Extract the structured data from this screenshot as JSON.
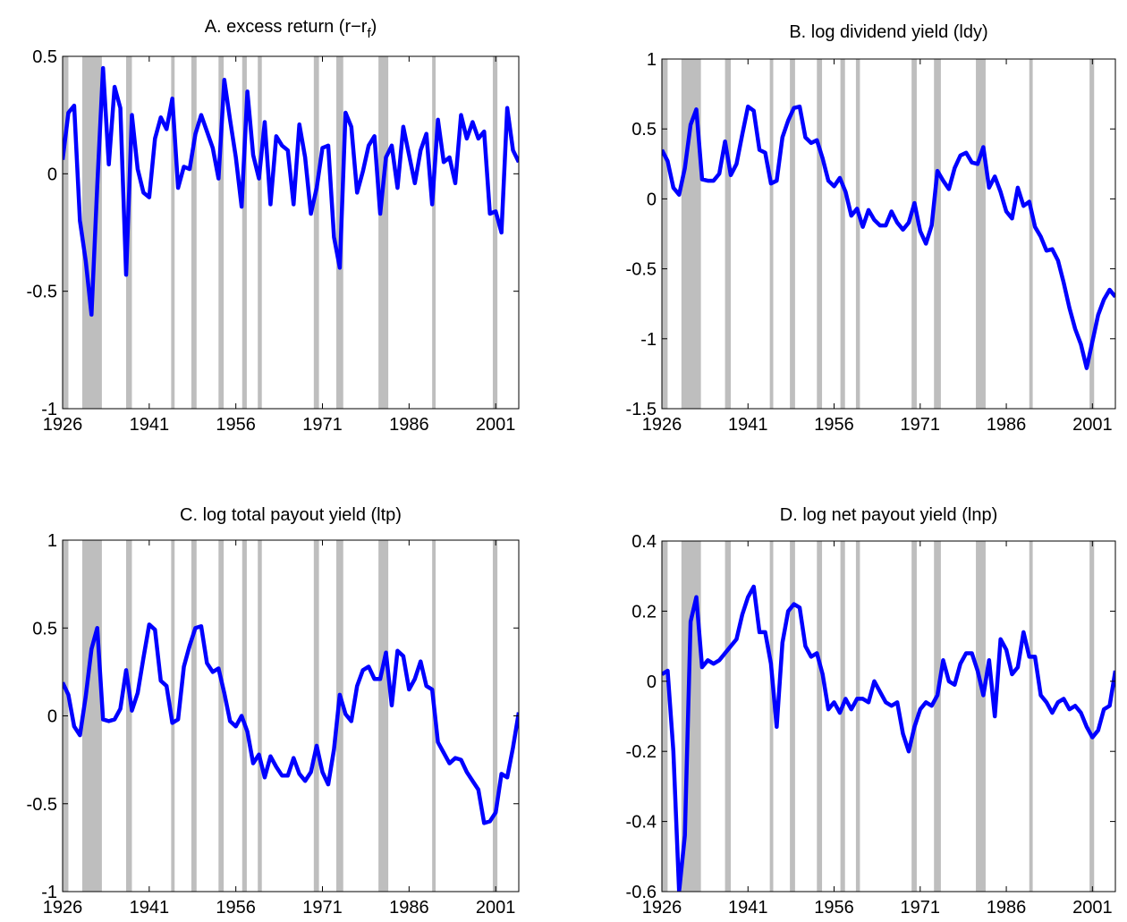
{
  "recessions": [
    [
      1926,
      1927
    ],
    [
      1929.4,
      1932.8
    ],
    [
      1937,
      1938
    ],
    [
      1944.8,
      1945.4
    ],
    [
      1948.3,
      1949.2
    ],
    [
      1953,
      1953.9
    ],
    [
      1957.1,
      1957.9
    ],
    [
      1959.8,
      1960.5
    ],
    [
      1969.5,
      1970.4
    ],
    [
      1973.4,
      1974.6
    ],
    [
      1980.7,
      1982.4
    ],
    [
      1990,
      1990.6
    ],
    [
      2000.5,
      2001.3
    ]
  ],
  "chart_data": [
    {
      "type": "line",
      "title": "A. excess return (r−r",
      "title_subscript": "f",
      "title_suffix": ")",
      "color": "#0000ff",
      "x": [
        1926,
        1927,
        1928,
        1929,
        1930,
        1931,
        1932,
        1933,
        1934,
        1935,
        1936,
        1937,
        1938,
        1939,
        1940,
        1941,
        1942,
        1943,
        1944,
        1945,
        1946,
        1947,
        1948,
        1949,
        1950,
        1951,
        1952,
        1953,
        1954,
        1955,
        1956,
        1957,
        1958,
        1959,
        1960,
        1961,
        1962,
        1963,
        1964,
        1965,
        1966,
        1967,
        1968,
        1969,
        1970,
        1971,
        1972,
        1973,
        1974,
        1975,
        1976,
        1977,
        1978,
        1979,
        1980,
        1981,
        1982,
        1983,
        1984,
        1985,
        1986,
        1987,
        1988,
        1989,
        1990,
        1991,
        1992,
        1993,
        1994,
        1995,
        1996,
        1997,
        1998,
        1999,
        2000,
        2001,
        2002,
        2003,
        2004,
        2005
      ],
      "values": [
        0.06,
        0.26,
        0.29,
        -0.2,
        -0.37,
        -0.6,
        -0.05,
        0.45,
        0.04,
        0.37,
        0.28,
        -0.43,
        0.25,
        0.02,
        -0.08,
        -0.1,
        0.15,
        0.24,
        0.19,
        0.32,
        -0.06,
        0.03,
        0.02,
        0.17,
        0.25,
        0.18,
        0.11,
        -0.02,
        0.4,
        0.23,
        0.07,
        -0.14,
        0.35,
        0.08,
        -0.02,
        0.22,
        -0.13,
        0.16,
        0.12,
        0.1,
        -0.13,
        0.21,
        0.07,
        -0.17,
        -0.06,
        0.11,
        0.12,
        -0.27,
        -0.4,
        0.26,
        0.2,
        -0.08,
        0.01,
        0.12,
        0.16,
        -0.17,
        0.07,
        0.12,
        -0.06,
        0.2,
        0.08,
        -0.04,
        0.1,
        0.17,
        -0.13,
        0.23,
        0.05,
        0.07,
        -0.04,
        0.25,
        0.15,
        0.22,
        0.15,
        0.18,
        -0.17,
        -0.16,
        -0.25,
        0.28,
        0.1,
        0.05
      ],
      "xlim": [
        1926,
        2005
      ],
      "xticks": [
        1926,
        1941,
        1956,
        1971,
        1986,
        2001
      ],
      "ylim": [
        -1,
        0.5
      ],
      "yticks": [
        -1,
        -0.5,
        0,
        0.5
      ]
    },
    {
      "type": "line",
      "title": "B. log dividend yield (ldy)",
      "color": "#0000ff",
      "x": [
        1926,
        1927,
        1928,
        1929,
        1930,
        1931,
        1932,
        1933,
        1934,
        1935,
        1936,
        1937,
        1938,
        1939,
        1940,
        1941,
        1942,
        1943,
        1944,
        1945,
        1946,
        1947,
        1948,
        1949,
        1950,
        1951,
        1952,
        1953,
        1954,
        1955,
        1956,
        1957,
        1958,
        1959,
        1960,
        1961,
        1962,
        1963,
        1964,
        1965,
        1966,
        1967,
        1968,
        1969,
        1970,
        1971,
        1972,
        1973,
        1974,
        1975,
        1976,
        1977,
        1978,
        1979,
        1980,
        1981,
        1982,
        1983,
        1984,
        1985,
        1986,
        1987,
        1988,
        1989,
        1990,
        1991,
        1992,
        1993,
        1994,
        1995,
        1996,
        1997,
        1998,
        1999,
        2000,
        2001,
        2002,
        2003,
        2004,
        2005
      ],
      "values": [
        0.35,
        0.27,
        0.08,
        0.03,
        0.22,
        0.53,
        0.64,
        0.14,
        0.13,
        0.13,
        0.18,
        0.41,
        0.17,
        0.25,
        0.46,
        0.66,
        0.63,
        0.35,
        0.33,
        0.11,
        0.13,
        0.44,
        0.56,
        0.65,
        0.66,
        0.44,
        0.4,
        0.42,
        0.29,
        0.13,
        0.09,
        0.15,
        0.05,
        -0.12,
        -0.07,
        -0.2,
        -0.08,
        -0.15,
        -0.19,
        -0.19,
        -0.09,
        -0.17,
        -0.22,
        -0.17,
        -0.03,
        -0.23,
        -0.32,
        -0.19,
        0.2,
        0.13,
        0.07,
        0.22,
        0.31,
        0.33,
        0.26,
        0.25,
        0.37,
        0.08,
        0.16,
        0.05,
        -0.09,
        -0.14,
        0.08,
        -0.05,
        -0.02,
        -0.2,
        -0.27,
        -0.37,
        -0.36,
        -0.44,
        -0.6,
        -0.78,
        -0.93,
        -1.04,
        -1.21,
        -1.02,
        -0.83,
        -0.72,
        -0.65,
        -0.7
      ],
      "xlim": [
        1926,
        2005
      ],
      "xticks": [
        1926,
        1941,
        1956,
        1971,
        1986,
        2001
      ],
      "ylim": [
        -1.5,
        1
      ],
      "yticks": [
        -1.5,
        -1,
        -0.5,
        0,
        0.5,
        1
      ]
    },
    {
      "type": "line",
      "title": "C. log total payout yield (ltp)",
      "color": "#0000ff",
      "x": [
        1926,
        1927,
        1928,
        1929,
        1930,
        1931,
        1932,
        1933,
        1934,
        1935,
        1936,
        1937,
        1938,
        1939,
        1940,
        1941,
        1942,
        1943,
        1944,
        1945,
        1946,
        1947,
        1948,
        1949,
        1950,
        1951,
        1952,
        1953,
        1954,
        1955,
        1956,
        1957,
        1958,
        1959,
        1960,
        1961,
        1962,
        1963,
        1964,
        1965,
        1966,
        1967,
        1968,
        1969,
        1970,
        1971,
        1972,
        1973,
        1974,
        1975,
        1976,
        1977,
        1978,
        1979,
        1980,
        1981,
        1982,
        1983,
        1984,
        1985,
        1986,
        1987,
        1988,
        1989,
        1990,
        1991,
        1992,
        1993,
        1994,
        1995,
        1996,
        1997,
        1998,
        1999,
        2000,
        2001,
        2002,
        2003,
        2004,
        2005
      ],
      "values": [
        0.19,
        0.12,
        -0.06,
        -0.11,
        0.11,
        0.38,
        0.5,
        -0.02,
        -0.03,
        -0.02,
        0.04,
        0.26,
        0.03,
        0.13,
        0.33,
        0.52,
        0.49,
        0.2,
        0.17,
        -0.04,
        -0.02,
        0.28,
        0.4,
        0.5,
        0.51,
        0.3,
        0.25,
        0.27,
        0.13,
        -0.03,
        -0.06,
        0,
        -0.09,
        -0.27,
        -0.22,
        -0.35,
        -0.23,
        -0.29,
        -0.34,
        -0.34,
        -0.24,
        -0.33,
        -0.37,
        -0.32,
        -0.17,
        -0.32,
        -0.39,
        -0.19,
        0.12,
        0.01,
        -0.03,
        0.17,
        0.26,
        0.28,
        0.21,
        0.21,
        0.36,
        0.06,
        0.37,
        0.34,
        0.15,
        0.21,
        0.31,
        0.17,
        0.15,
        -0.15,
        -0.21,
        -0.27,
        -0.24,
        -0.25,
        -0.32,
        -0.37,
        -0.42,
        -0.61,
        -0.6,
        -0.55,
        -0.33,
        -0.35,
        -0.18,
        0.02
      ],
      "xlim": [
        1926,
        2005
      ],
      "xticks": [
        1926,
        1941,
        1956,
        1971,
        1986,
        2001
      ],
      "ylim": [
        -1,
        1
      ],
      "yticks": [
        -1,
        -0.5,
        0,
        0.5,
        1
      ]
    },
    {
      "type": "line",
      "title": "D. log net payout yield (lnp)",
      "color": "#0000ff",
      "x": [
        1926,
        1927,
        1928,
        1929,
        1930,
        1931,
        1932,
        1933,
        1934,
        1935,
        1936,
        1937,
        1938,
        1939,
        1940,
        1941,
        1942,
        1943,
        1944,
        1945,
        1946,
        1947,
        1948,
        1949,
        1950,
        1951,
        1952,
        1953,
        1954,
        1955,
        1956,
        1957,
        1958,
        1959,
        1960,
        1961,
        1962,
        1963,
        1964,
        1965,
        1966,
        1967,
        1968,
        1969,
        1970,
        1971,
        1972,
        1973,
        1974,
        1975,
        1976,
        1977,
        1978,
        1979,
        1980,
        1981,
        1982,
        1983,
        1984,
        1985,
        1986,
        1987,
        1988,
        1989,
        1990,
        1991,
        1992,
        1993,
        1994,
        1995,
        1996,
        1997,
        1998,
        1999,
        2000,
        2001,
        2002,
        2003,
        2004,
        2005
      ],
      "values": [
        0.02,
        0.03,
        -0.2,
        -0.6,
        -0.44,
        0.17,
        0.24,
        0.04,
        0.06,
        0.05,
        0.06,
        0.08,
        0.1,
        0.12,
        0.19,
        0.24,
        0.27,
        0.14,
        0.14,
        0.05,
        -0.13,
        0.11,
        0.2,
        0.22,
        0.21,
        0.1,
        0.07,
        0.08,
        0.02,
        -0.08,
        -0.06,
        -0.09,
        -0.05,
        -0.08,
        -0.05,
        -0.05,
        -0.06,
        0,
        -0.03,
        -0.06,
        -0.07,
        -0.06,
        -0.15,
        -0.2,
        -0.13,
        -0.08,
        -0.06,
        -0.07,
        -0.04,
        0.06,
        0,
        -0.01,
        0.05,
        0.08,
        0.08,
        0.03,
        -0.04,
        0.06,
        -0.1,
        0.12,
        0.09,
        0.02,
        0.04,
        0.14,
        0.07,
        0.07,
        -0.04,
        -0.06,
        -0.09,
        -0.06,
        -0.05,
        -0.08,
        -0.07,
        -0.09,
        -0.13,
        -0.16,
        -0.14,
        -0.08,
        -0.07,
        0.03
      ],
      "xlim": [
        1926,
        2005
      ],
      "xticks": [
        1926,
        1941,
        1956,
        1971,
        1986,
        2001
      ],
      "ylim": [
        -0.6,
        0.4
      ],
      "yticks": [
        -0.6,
        -0.4,
        -0.2,
        0,
        0.2,
        0.4
      ]
    }
  ]
}
